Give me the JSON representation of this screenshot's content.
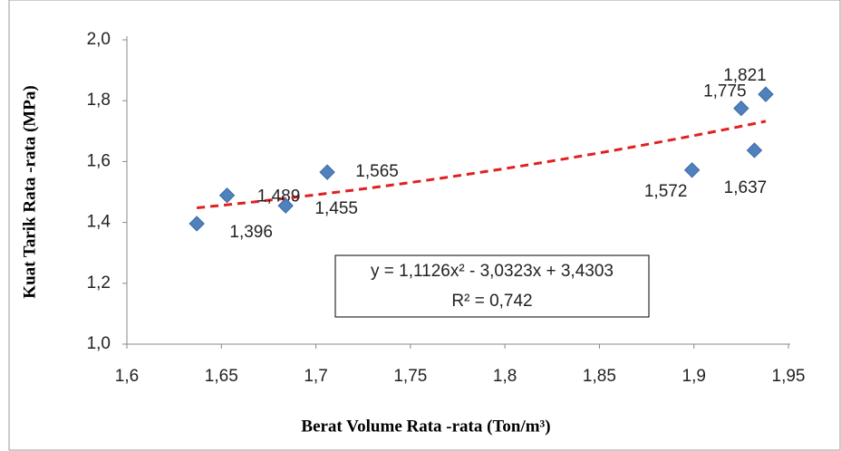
{
  "chart_data": {
    "type": "scatter",
    "x_label": "Berat Volume Rata -rata (Ton/m³)",
    "y_label": "Kuat Tarik Rata -rata (MPa)",
    "series": [
      {
        "color": "#4f81bd",
        "x": [
          1.637,
          1.653,
          1.684,
          1.706,
          1.899,
          1.925,
          1.932,
          1.938
        ],
        "values": [
          1.396,
          1.489,
          1.455,
          1.565,
          1.572,
          1.775,
          1.637,
          1.821
        ],
        "value_labels": [
          "1,396",
          "1,489",
          "1,455",
          "1,565",
          "1,572",
          "1,775",
          "1,637",
          "1,821"
        ]
      }
    ],
    "trendline": {
      "coefficients": [
        1.1126,
        -3.0323,
        3.4303
      ],
      "color": "#e02020",
      "equation": "y = 1,1126x² - 3,0323x + 3,4303",
      "r_squared": "R² = 0,742"
    },
    "xlim": [
      1.6,
      1.95
    ],
    "xticks": [
      {
        "value": 1.6,
        "label": "1,6"
      },
      {
        "value": 1.65,
        "label": "1,65"
      },
      {
        "value": 1.7,
        "label": "1,7"
      },
      {
        "value": 1.75,
        "label": "1,75"
      },
      {
        "value": 1.8,
        "label": "1,8"
      },
      {
        "value": 1.85,
        "label": "1,85"
      },
      {
        "value": 1.9,
        "label": "1,9"
      },
      {
        "value": 1.95,
        "label": "1,95"
      }
    ],
    "ylim": [
      1.0,
      2.0
    ],
    "yticks": [
      {
        "value": 1.0,
        "label": "1,0"
      },
      {
        "value": 1.2,
        "label": "1,2"
      },
      {
        "value": 1.4,
        "label": "1,4"
      },
      {
        "value": 1.6,
        "label": "1,6"
      },
      {
        "value": 1.8,
        "label": "1,8"
      },
      {
        "value": 2.0,
        "label": "2,0"
      }
    ],
    "grid": false
  }
}
